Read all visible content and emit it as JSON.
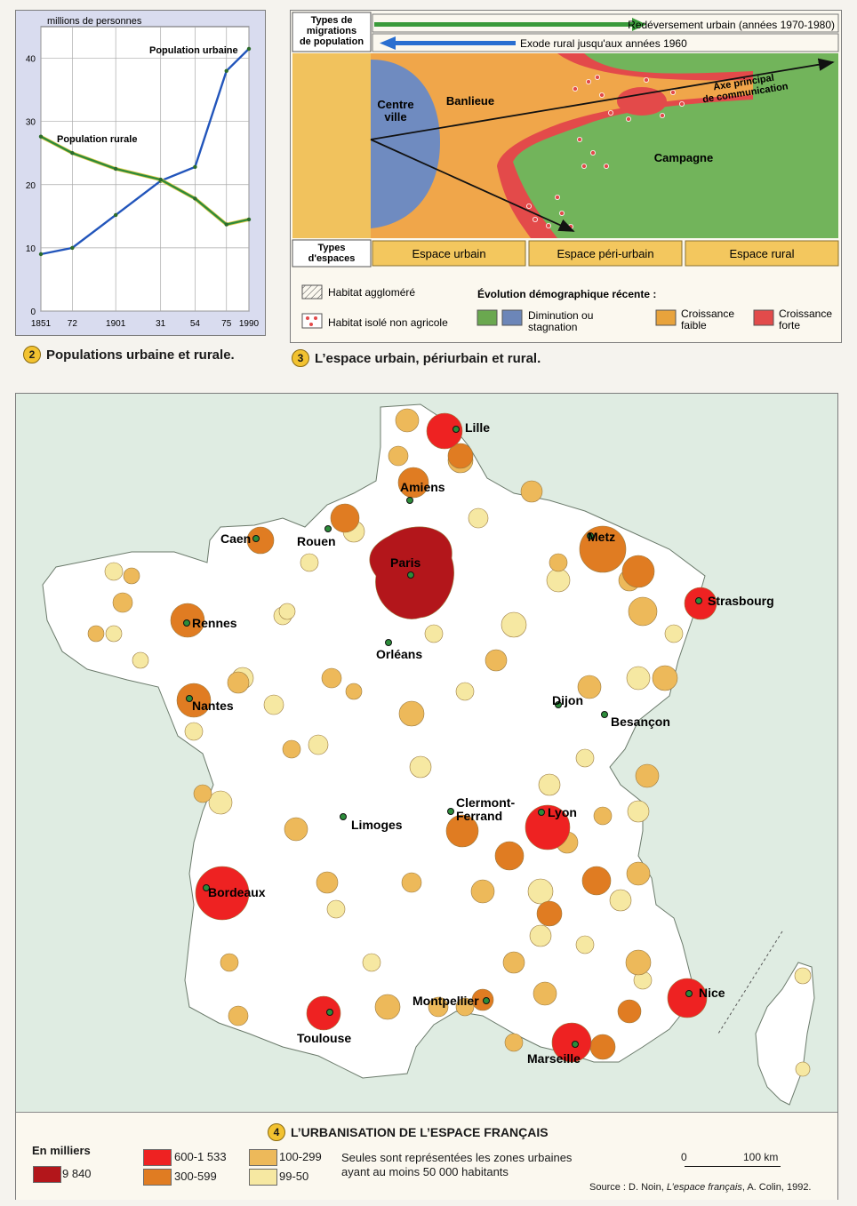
{
  "figure2": {
    "caption_num": "2",
    "caption": "Populations urbaine et rurale.",
    "y_unit": "millions de personnes",
    "chart_data": {
      "type": "line",
      "x": [
        1851,
        1872,
        1901,
        1931,
        1954,
        1975,
        1990
      ],
      "x_tick_labels": [
        "1851",
        "72",
        "1901",
        "31",
        "54",
        "75",
        "1990"
      ],
      "y_ticks": [
        0,
        10,
        20,
        30,
        40
      ],
      "ylim": [
        0,
        45
      ],
      "xlabel": "",
      "ylabel": "millions de personnes",
      "series": [
        {
          "name": "Population urbaine",
          "color": "#2255bb",
          "values": [
            9,
            10,
            15.2,
            20.6,
            22.8,
            38,
            41.5
          ]
        },
        {
          "name": "Population rurale",
          "color": "#2f8a3a",
          "values": [
            27.6,
            25,
            22.5,
            20.8,
            17.8,
            13.7,
            14.5
          ]
        }
      ],
      "grid": true
    }
  },
  "figure3": {
    "caption_num": "3",
    "caption": "L’espace urbain, périurbain et rural.",
    "migration_header": "Types de migrations de population",
    "arrow_green": "Redéversement urbain (années 1970-1980)",
    "arrow_blue": "Exode rural jusqu'aux années 1960",
    "centre": "Centre ville",
    "banlieue": "Banlieue",
    "campagne": "Campagne",
    "axe": "Axe principal de communication",
    "espaces_header": "Types d'espaces",
    "espaces": [
      "Espace urbain",
      "Espace péri-urbain",
      "Espace rural"
    ],
    "legend": {
      "hatch": "Habitat aggloméré",
      "isole": "Habitat isolé non agricole",
      "evolution_title": "Évolution démographique récente :",
      "diminution": "Diminution ou stagnation",
      "croissance_faible": "Croissance faible",
      "croissance_forte": "Croissance forte",
      "colors": {
        "diminution_green": "#6aa84f",
        "diminution_blue": "#6c86b8",
        "faible": "#e8a33c",
        "forte": "#e24b4b"
      }
    }
  },
  "figure4": {
    "caption_num": "4",
    "title": "L’URBANISATION DE L’ESPACE FRANÇAIS",
    "legend_title": "En milliers",
    "classes": [
      {
        "label": "9 840",
        "color": "#b3161b"
      },
      {
        "label": "600-1 533",
        "color": "#ee2222"
      },
      {
        "label": "300-599",
        "color": "#e07c22"
      },
      {
        "label": "100-299",
        "color": "#edb95a"
      },
      {
        "label": "99-50",
        "color": "#f6e8a2"
      }
    ],
    "note": "Seules sont représentées les zones urbaines ayant au moins 50 000 habitants",
    "scale_zero": "0",
    "scale_label": "100 km",
    "source_prefix": "Source : D. Noin, ",
    "source_title": "L’espace français",
    "source_suffix": ", A. Colin, 1992.",
    "cities": {
      "lille": "Lille",
      "amiens": "Amiens",
      "caen": "Caen",
      "rouen": "Rouen",
      "paris": "Paris",
      "metz": "Metz",
      "strasbourg": "Strasbourg",
      "rennes": "Rennes",
      "orleans": "Orléans",
      "nantes": "Nantes",
      "dijon": "Dijon",
      "besancon": "Besançon",
      "clermont1": "Clermont-",
      "clermont2": "Ferrand",
      "limoges": "Limoges",
      "lyon": "Lyon",
      "bordeaux": "Bordeaux",
      "nice": "Nice",
      "montpellier": "Montpellier",
      "toulouse": "Toulouse",
      "marseille": "Marseille"
    }
  }
}
